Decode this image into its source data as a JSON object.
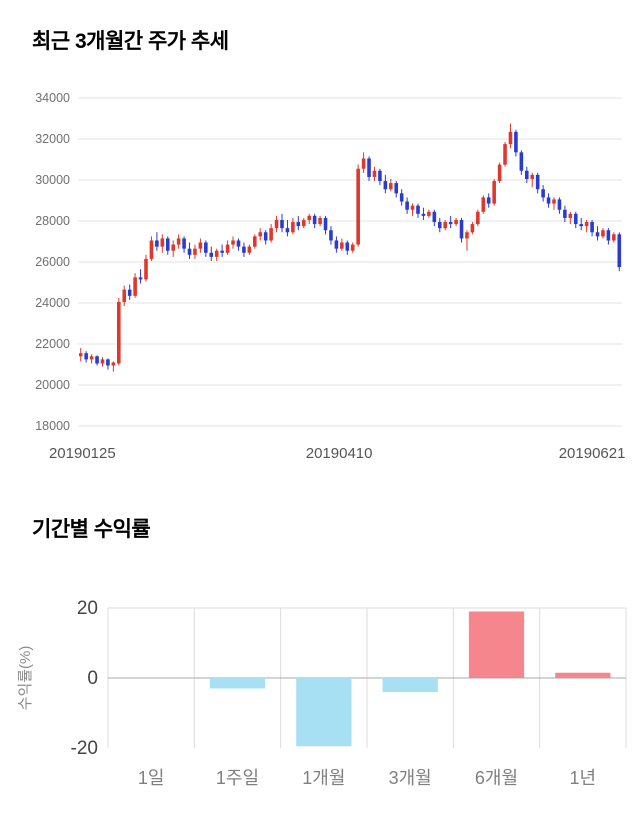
{
  "chart_data": [
    {
      "type": "candlestick",
      "title": "최근 3개월간 주가 추세",
      "ylim": [
        18000,
        34000
      ],
      "yticks": [
        18000,
        20000,
        22000,
        24000,
        26000,
        28000,
        30000,
        32000,
        34000
      ],
      "xtick_labels": [
        "20190125",
        "20190410",
        "20190621"
      ],
      "grid": "horizontal",
      "up_color": "#df372c",
      "down_color": "#2a3bd0",
      "grid_color": "#e3e3e3",
      "ytick_label_color": "#707070",
      "xtick_label_color": "#555555",
      "candles_ohlc": [
        [
          21400,
          21800,
          21150,
          21550
        ],
        [
          21550,
          21650,
          21100,
          21250
        ],
        [
          21250,
          21500,
          21050,
          21400
        ],
        [
          21400,
          21450,
          20950,
          21050
        ],
        [
          21050,
          21350,
          20900,
          21250
        ],
        [
          21250,
          21300,
          20750,
          20950
        ],
        [
          20950,
          21150,
          20650,
          21100
        ],
        [
          21050,
          24250,
          20950,
          24050
        ],
        [
          24050,
          24850,
          23850,
          24650
        ],
        [
          24650,
          24900,
          24150,
          24350
        ],
        [
          24350,
          25450,
          24250,
          25250
        ],
        [
          25250,
          25650,
          24950,
          25150
        ],
        [
          25150,
          26350,
          25050,
          26150
        ],
        [
          26150,
          27250,
          26050,
          27050
        ],
        [
          27050,
          27450,
          26550,
          26750
        ],
        [
          26750,
          27350,
          26450,
          27150
        ],
        [
          27150,
          27250,
          26350,
          26550
        ],
        [
          26550,
          27050,
          26250,
          26850
        ],
        [
          26850,
          27350,
          26650,
          27150
        ],
        [
          27150,
          27250,
          26450,
          26650
        ],
        [
          26650,
          26950,
          26150,
          26350
        ],
        [
          26350,
          26850,
          26150,
          26650
        ],
        [
          26650,
          27150,
          26450,
          26950
        ],
        [
          26950,
          27050,
          26250,
          26450
        ],
        [
          26450,
          26750,
          26050,
          26250
        ],
        [
          26250,
          26650,
          26050,
          26550
        ],
        [
          26550,
          26850,
          26250,
          26450
        ],
        [
          26450,
          27050,
          26350,
          26850
        ],
        [
          26850,
          27250,
          26650,
          27050
        ],
        [
          27050,
          27150,
          26550,
          26750
        ],
        [
          26750,
          26950,
          26250,
          26450
        ],
        [
          26450,
          26850,
          26350,
          26750
        ],
        [
          26750,
          27350,
          26650,
          27250
        ],
        [
          27250,
          27650,
          27050,
          27450
        ],
        [
          27450,
          27550,
          26850,
          27050
        ],
        [
          27050,
          27850,
          26950,
          27650
        ],
        [
          27650,
          28250,
          27450,
          28050
        ],
        [
          28050,
          28350,
          27450,
          27650
        ],
        [
          27650,
          28050,
          27250,
          27450
        ],
        [
          27450,
          28150,
          27350,
          27950
        ],
        [
          27950,
          28250,
          27550,
          27750
        ],
        [
          27750,
          28150,
          27650,
          28050
        ],
        [
          28050,
          28350,
          27850,
          28250
        ],
        [
          28250,
          28350,
          27650,
          27850
        ],
        [
          27850,
          28250,
          27750,
          28150
        ],
        [
          28150,
          28250,
          27350,
          27550
        ],
        [
          27550,
          27750,
          26850,
          27050
        ],
        [
          27050,
          27250,
          26450,
          26650
        ],
        [
          26650,
          27150,
          26550,
          26950
        ],
        [
          26950,
          27050,
          26350,
          26550
        ],
        [
          26550,
          26950,
          26450,
          26850
        ],
        [
          26850,
          30750,
          26750,
          30550
        ],
        [
          30550,
          31350,
          30350,
          31050
        ],
        [
          31050,
          31150,
          29950,
          30150
        ],
        [
          30150,
          30650,
          29950,
          30450
        ],
        [
          30450,
          30550,
          29750,
          29950
        ],
        [
          29950,
          30250,
          29350,
          29550
        ],
        [
          29550,
          30050,
          29450,
          29850
        ],
        [
          29850,
          29950,
          29150,
          29350
        ],
        [
          29350,
          29550,
          28750,
          28950
        ],
        [
          28950,
          29150,
          28350,
          28550
        ],
        [
          28550,
          28850,
          28250,
          28750
        ],
        [
          28750,
          28850,
          28150,
          28350
        ],
        [
          28350,
          28650,
          28050,
          28250
        ],
        [
          28250,
          28550,
          28150,
          28450
        ],
        [
          28450,
          28550,
          27750,
          27950
        ],
        [
          27950,
          28150,
          27450,
          27650
        ],
        [
          27650,
          28050,
          27550,
          27950
        ],
        [
          27950,
          28250,
          27650,
          27850
        ],
        [
          27850,
          28150,
          27750,
          28050
        ],
        [
          28050,
          28150,
          26950,
          27150
        ],
        [
          27150,
          27550,
          26550,
          27450
        ],
        [
          27450,
          27950,
          27350,
          27850
        ],
        [
          27850,
          28550,
          27750,
          28450
        ],
        [
          28450,
          29250,
          28350,
          29150
        ],
        [
          29150,
          29350,
          28650,
          28850
        ],
        [
          28850,
          30050,
          28750,
          29950
        ],
        [
          29950,
          30850,
          29850,
          30750
        ],
        [
          30750,
          31850,
          30650,
          31750
        ],
        [
          31750,
          32750,
          31550,
          32350
        ],
        [
          32350,
          32450,
          31150,
          31350
        ],
        [
          31350,
          31450,
          30250,
          30450
        ],
        [
          30450,
          30650,
          29850,
          30050
        ],
        [
          30050,
          30350,
          29650,
          30250
        ],
        [
          30250,
          30350,
          29350,
          29550
        ],
        [
          29550,
          29750,
          28950,
          29150
        ],
        [
          29150,
          29350,
          28650,
          28850
        ],
        [
          28850,
          29150,
          28550,
          29050
        ],
        [
          29050,
          29150,
          28350,
          28550
        ],
        [
          28550,
          28750,
          27950,
          28150
        ],
        [
          28150,
          28450,
          27850,
          28350
        ],
        [
          28350,
          28450,
          27650,
          27850
        ],
        [
          27850,
          28150,
          27550,
          27750
        ],
        [
          27750,
          28050,
          27450,
          27950
        ],
        [
          27950,
          28050,
          27250,
          27450
        ],
        [
          27450,
          27750,
          27050,
          27250
        ],
        [
          27250,
          27650,
          27150,
          27550
        ],
        [
          27550,
          27650,
          26850,
          27050
        ],
        [
          27050,
          27450,
          26950,
          27350
        ],
        [
          27350,
          27450,
          25550,
          25750
        ]
      ]
    },
    {
      "type": "bar",
      "title": "기간별 수익률",
      "categories": [
        "1일",
        "1주일",
        "1개월",
        "3개월",
        "6개월",
        "1년"
      ],
      "values": [
        0,
        -3,
        -19.5,
        -4,
        19,
        1.5
      ],
      "ylabel": "수익률(%)",
      "yticks": [
        20,
        0,
        -20
      ],
      "ylim": [
        -20,
        20
      ],
      "grid": "on",
      "positive_color": "#f6868d",
      "negative_color": "#a6e0f2",
      "grid_color": "#dddddd",
      "zero_line_color": "#aaaaaa",
      "ytick_label_color": "#444444",
      "category_label_color": "#808080",
      "ylabel_color": "#8a8a8a"
    }
  ]
}
